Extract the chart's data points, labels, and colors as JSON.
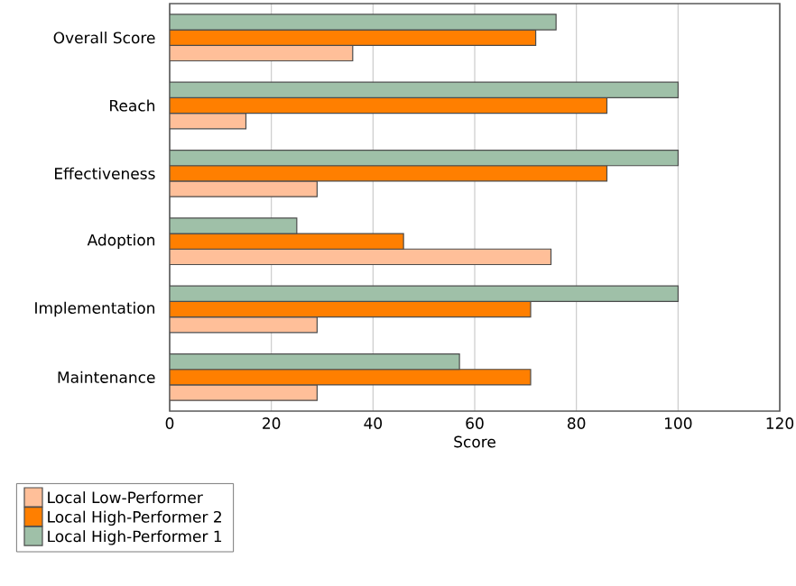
{
  "chart_data": {
    "type": "bar",
    "orientation": "horizontal",
    "xlabel": "Score",
    "categories": [
      "Overall Score",
      "Reach",
      "Effectiveness",
      "Adoption",
      "Implementation",
      "Maintenance"
    ],
    "series": [
      {
        "name": "Local Low-Performer",
        "color": "#ffbf99",
        "values": [
          36,
          15,
          29,
          75,
          29,
          29
        ]
      },
      {
        "name": "Local High-Performer 2",
        "color": "#ff7f00",
        "values": [
          72,
          86,
          86,
          46,
          71,
          71
        ]
      },
      {
        "name": "Local High-Performer 1",
        "color": "#9fc0a8",
        "values": [
          76,
          100,
          100,
          25,
          100,
          57
        ]
      }
    ],
    "xlim": [
      0,
      120
    ],
    "xticks": [
      0,
      20,
      40,
      60,
      80,
      100,
      120
    ],
    "grid": "x",
    "legend": "bottom left"
  }
}
